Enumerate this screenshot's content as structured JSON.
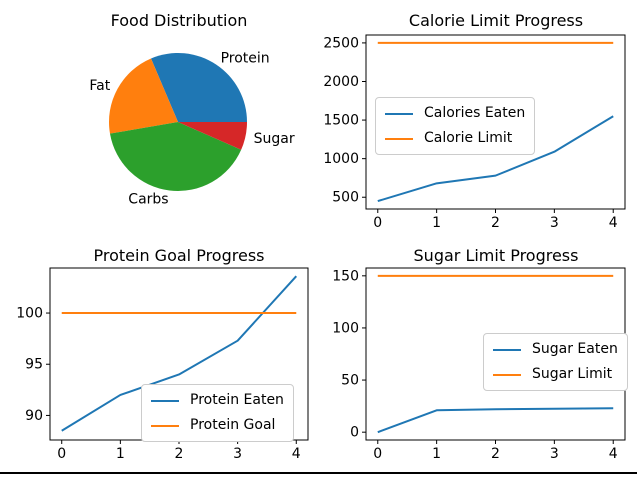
{
  "figure": {
    "background": "#ffffff",
    "bottom_rule_color": "#000000"
  },
  "palette": {
    "blue": "#1f77b4",
    "orange": "#ff7f0e",
    "green": "#2ca02c",
    "red": "#d62728",
    "axis": "#000000",
    "legend_border": "#cccccc"
  },
  "chart_data": [
    {
      "type": "pie",
      "title": "Food Distribution",
      "labels": [
        "Protein",
        "Fat",
        "Carbs",
        "Sugar"
      ],
      "values_percent": [
        31.4,
        21.3,
        40.7,
        6.6
      ],
      "colors": [
        "#1f77b4",
        "#ff7f0e",
        "#2ca02c",
        "#d62728"
      ],
      "start_angle_deg": 0,
      "direction": "counterclockwise",
      "legend_position": "none"
    },
    {
      "type": "line",
      "title": "Calorie Limit Progress",
      "x": [
        0,
        1,
        2,
        3,
        4
      ],
      "series": [
        {
          "name": "Calories Eaten",
          "color": "#1f77b4",
          "values": [
            450,
            680,
            780,
            1090,
            1550
          ]
        },
        {
          "name": "Calorie Limit",
          "color": "#ff7f0e",
          "values": [
            2500,
            2500,
            2500,
            2500,
            2500
          ]
        }
      ],
      "xticks": [
        0,
        1,
        2,
        3,
        4
      ],
      "yticks": [
        500,
        1000,
        1500,
        2000,
        2500
      ],
      "xlim": [
        -0.2,
        4.2
      ],
      "ylim": [
        347.5,
        2602.5
      ],
      "grid": false,
      "legend_position": "center left"
    },
    {
      "type": "line",
      "title": "Protein Goal Progress",
      "x": [
        0,
        1,
        2,
        3,
        4
      ],
      "series": [
        {
          "name": "Protein Eaten",
          "color": "#1f77b4",
          "values": [
            88.5,
            92,
            94,
            97.3,
            103.6
          ]
        },
        {
          "name": "Protein Goal",
          "color": "#ff7f0e",
          "values": [
            100,
            100,
            100,
            100,
            100
          ]
        }
      ],
      "xticks": [
        0,
        1,
        2,
        3,
        4
      ],
      "yticks": [
        90,
        95,
        100
      ],
      "xlim": [
        -0.2,
        4.2
      ],
      "ylim": [
        87.6,
        104.4
      ],
      "grid": false,
      "legend_position": "lower right"
    },
    {
      "type": "line",
      "title": "Sugar Limit Progress",
      "x": [
        0,
        1,
        2,
        3,
        4
      ],
      "series": [
        {
          "name": "Sugar Eaten",
          "color": "#1f77b4",
          "values": [
            0,
            21,
            22,
            22.5,
            23
          ]
        },
        {
          "name": "Sugar Limit",
          "color": "#ff7f0e",
          "values": [
            150,
            150,
            150,
            150,
            150
          ]
        }
      ],
      "xticks": [
        0,
        1,
        2,
        3,
        4
      ],
      "yticks": [
        0,
        50,
        100,
        150
      ],
      "xlim": [
        -0.2,
        4.2
      ],
      "ylim": [
        -7.5,
        157.5
      ],
      "grid": false,
      "legend_position": "center right"
    }
  ]
}
